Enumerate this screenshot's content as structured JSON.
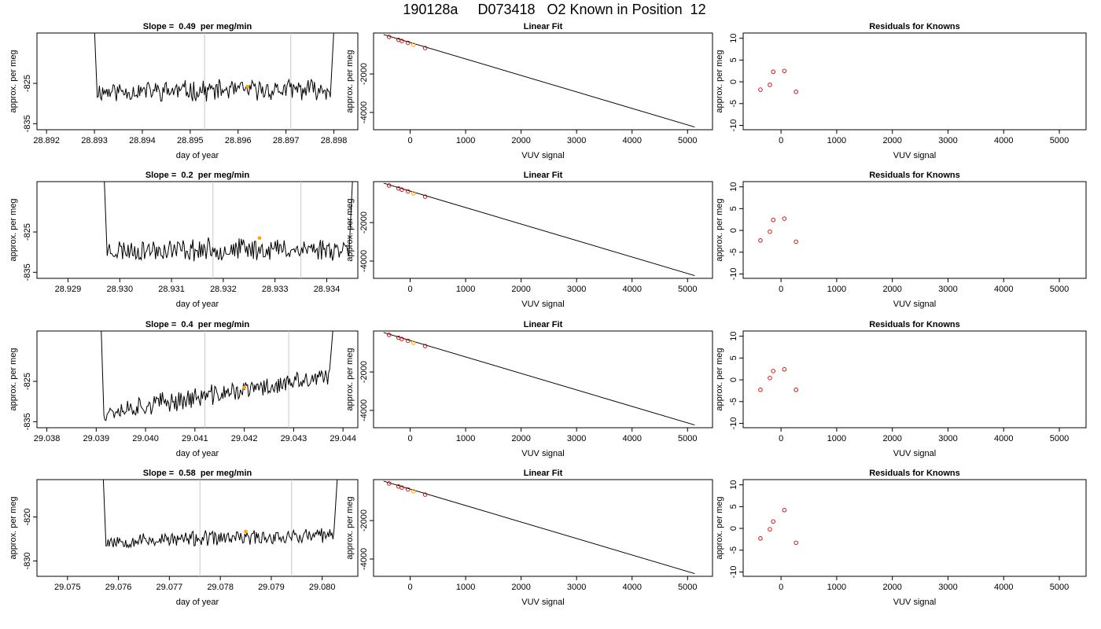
{
  "figure_title": "190128a     D073418   O2 Known in Position  12",
  "colors": {
    "trace": "#000000",
    "vline": "#c8c8c8",
    "highlight": "#ffa500",
    "residual": "#cc0000",
    "axis": "#000000"
  },
  "chart_data": [
    {
      "type": "line",
      "row": 0,
      "panel": "trace",
      "title": "Slope =  0.49  per meg/min",
      "xlabel": "day of year",
      "ylabel": "approx. per meg",
      "xlim": [
        28.8918,
        28.8985
      ],
      "ylim": [
        -836.5,
        -812.5
      ],
      "xticks": [
        28.892,
        28.893,
        28.894,
        28.895,
        28.896,
        28.897,
        28.898
      ],
      "xticklabels": [
        "28.892",
        "28.893",
        "28.894",
        "28.895",
        "28.896",
        "28.897",
        "28.898"
      ],
      "yticks": [
        -825,
        -835
      ],
      "yticklabels": [
        "-825",
        "-835"
      ],
      "vlines": [
        28.8953,
        28.8971
      ],
      "trace": {
        "x_start": 28.893,
        "x_end": 28.898,
        "base": -827,
        "drift": 0.5,
        "noise": 2.2,
        "seed": 11
      },
      "highlight": {
        "x": 28.8962,
        "y": -825.8
      }
    },
    {
      "type": "line",
      "row": 0,
      "panel": "fit",
      "title": "Linear Fit",
      "xlabel": "VUV signal",
      "ylabel": "approx. per meg",
      "xlim": [
        -660,
        5450
      ],
      "ylim": [
        -4900,
        130
      ],
      "xticks": [
        0,
        1000,
        2000,
        3000,
        4000,
        5000
      ],
      "xticklabels": [
        "0",
        "1000",
        "2000",
        "3000",
        "4000",
        "5000"
      ],
      "yticks": [
        -2000,
        -4000
      ],
      "yticklabels": [
        "-2000",
        "-4000"
      ],
      "line": [
        [
          -480,
          50
        ],
        [
          5130,
          -4760
        ]
      ],
      "points": [
        [
          -380,
          -70
        ],
        [
          -210,
          -225
        ],
        [
          -150,
          -285
        ],
        [
          -40,
          -380
        ],
        [
          270,
          -650
        ]
      ],
      "highlight": {
        "x": 60,
        "y": -480
      }
    },
    {
      "type": "scatter",
      "row": 0,
      "panel": "residual",
      "title": "Residuals for Knowns",
      "xlabel": "VUV signal",
      "ylabel": "approx. per meg",
      "xlim": [
        -680,
        5480
      ],
      "ylim": [
        -11,
        11.2
      ],
      "xticks": [
        0,
        1000,
        2000,
        3000,
        4000,
        5000
      ],
      "xticklabels": [
        "0",
        "1000",
        "2000",
        "3000",
        "4000",
        "5000"
      ],
      "yticks": [
        -10,
        -5,
        0,
        5,
        10
      ],
      "yticklabels": [
        "-10",
        "-5",
        "0",
        "5",
        "10"
      ],
      "x": [
        -370,
        -200,
        -140,
        60,
        270
      ],
      "y": [
        -1.8,
        -0.7,
        2.3,
        2.5,
        -2.3
      ]
    },
    {
      "type": "line",
      "row": 1,
      "panel": "trace",
      "title": "Slope =  0.2  per meg/min",
      "xlabel": "day of year",
      "ylabel": "approx. per meg",
      "xlim": [
        28.9284,
        28.9346
      ],
      "ylim": [
        -836.5,
        -812.5
      ],
      "xticks": [
        28.929,
        28.93,
        28.931,
        28.932,
        28.933,
        28.934
      ],
      "xticklabels": [
        "28.929",
        "28.930",
        "28.931",
        "28.932",
        "28.933",
        "28.934"
      ],
      "yticks": [
        -825,
        -835
      ],
      "yticklabels": [
        "-825",
        "-835"
      ],
      "vlines": [
        28.9318,
        28.9335
      ],
      "trace": {
        "x_start": 28.9297,
        "x_end": 28.9345,
        "base": -829.5,
        "drift": 0.35,
        "noise": 2.4,
        "seed": 23
      },
      "highlight": {
        "x": 28.9327,
        "y": -826.5
      }
    },
    {
      "type": "line",
      "row": 1,
      "panel": "fit",
      "title": "Linear Fit",
      "xlabel": "VUV signal",
      "ylabel": "approx. per meg",
      "xlim": [
        -660,
        5450
      ],
      "ylim": [
        -4900,
        130
      ],
      "xticks": [
        0,
        1000,
        2000,
        3000,
        4000,
        5000
      ],
      "xticklabels": [
        "0",
        "1000",
        "2000",
        "3000",
        "4000",
        "5000"
      ],
      "yticks": [
        -2000,
        -4000
      ],
      "yticklabels": [
        "-2000",
        "-4000"
      ],
      "line": [
        [
          -480,
          50
        ],
        [
          5130,
          -4760
        ]
      ],
      "points": [
        [
          -380,
          -70
        ],
        [
          -210,
          -225
        ],
        [
          -150,
          -285
        ],
        [
          -40,
          -380
        ],
        [
          270,
          -650
        ]
      ],
      "highlight": {
        "x": 60,
        "y": -480
      }
    },
    {
      "type": "scatter",
      "row": 1,
      "panel": "residual",
      "title": "Residuals for Knowns",
      "xlabel": "VUV signal",
      "ylabel": "approx. per meg",
      "xlim": [
        -680,
        5480
      ],
      "ylim": [
        -11,
        11.2
      ],
      "xticks": [
        0,
        1000,
        2000,
        3000,
        4000,
        5000
      ],
      "xticklabels": [
        "0",
        "1000",
        "2000",
        "3000",
        "4000",
        "5000"
      ],
      "yticks": [
        -10,
        -5,
        0,
        5,
        10
      ],
      "yticklabels": [
        "-10",
        "-5",
        "0",
        "5",
        "10"
      ],
      "x": [
        -370,
        -200,
        -140,
        60,
        270
      ],
      "y": [
        -2.3,
        -0.3,
        2.4,
        2.7,
        -2.6
      ]
    },
    {
      "type": "line",
      "row": 2,
      "panel": "trace",
      "title": "Slope =  0.4  per meg/min",
      "xlabel": "day of year",
      "ylabel": "approx. per meg",
      "xlim": [
        29.0378,
        29.0443
      ],
      "ylim": [
        -836.5,
        -812.5
      ],
      "xticks": [
        29.038,
        29.039,
        29.04,
        29.041,
        29.042,
        29.043,
        29.044
      ],
      "xticklabels": [
        "29.038",
        "29.039",
        "29.040",
        "29.041",
        "29.042",
        "29.043",
        "29.044"
      ],
      "yticks": [
        -825,
        -835
      ],
      "yticklabels": [
        "-825",
        "-835"
      ],
      "vlines": [
        29.0412,
        29.0429
      ],
      "trace": {
        "x_start": 29.0391,
        "x_end": 29.0438,
        "base": -832.5,
        "drift": 8.5,
        "noise": 2.2,
        "seed": 37
      },
      "highlight": {
        "x": 29.042,
        "y": -826.5
      }
    },
    {
      "type": "line",
      "row": 2,
      "panel": "fit",
      "title": "Linear Fit",
      "xlabel": "VUV signal",
      "ylabel": "approx. per meg",
      "xlim": [
        -660,
        5450
      ],
      "ylim": [
        -4900,
        130
      ],
      "xticks": [
        0,
        1000,
        2000,
        3000,
        4000,
        5000
      ],
      "xticklabels": [
        "0",
        "1000",
        "2000",
        "3000",
        "4000",
        "5000"
      ],
      "yticks": [
        -2000,
        -4000
      ],
      "yticklabels": [
        "-2000",
        "-4000"
      ],
      "line": [
        [
          -480,
          50
        ],
        [
          5130,
          -4760
        ]
      ],
      "points": [
        [
          -380,
          -70
        ],
        [
          -210,
          -225
        ],
        [
          -150,
          -285
        ],
        [
          -40,
          -380
        ],
        [
          270,
          -650
        ]
      ],
      "highlight": {
        "x": 60,
        "y": -480
      }
    },
    {
      "type": "scatter",
      "row": 2,
      "panel": "residual",
      "title": "Residuals for Knowns",
      "xlabel": "VUV signal",
      "ylabel": "approx. per meg",
      "xlim": [
        -680,
        5480
      ],
      "ylim": [
        -11,
        11.2
      ],
      "xticks": [
        0,
        1000,
        2000,
        3000,
        4000,
        5000
      ],
      "xticklabels": [
        "0",
        "1000",
        "2000",
        "3000",
        "4000",
        "5000"
      ],
      "yticks": [
        -10,
        -5,
        0,
        5,
        10
      ],
      "yticklabels": [
        "-10",
        "-5",
        "0",
        "5",
        "10"
      ],
      "x": [
        -370,
        -200,
        -140,
        60,
        270
      ],
      "y": [
        -2.3,
        0.4,
        2.0,
        2.4,
        -2.3
      ]
    },
    {
      "type": "line",
      "row": 3,
      "panel": "trace",
      "title": "Slope =  0.58  per meg/min",
      "xlabel": "day of year",
      "ylabel": "approx. per meg",
      "xlim": [
        29.0744,
        29.0807
      ],
      "ylim": [
        -833.5,
        -811.5
      ],
      "xticks": [
        29.075,
        29.076,
        29.077,
        29.078,
        29.079,
        29.08
      ],
      "xticklabels": [
        "29.075",
        "29.076",
        "29.077",
        "29.078",
        "29.079",
        "29.080"
      ],
      "yticks": [
        -820,
        -830
      ],
      "yticklabels": [
        "-820",
        "-830"
      ],
      "vlines": [
        29.0776,
        29.0794
      ],
      "trace": {
        "x_start": 29.0757,
        "x_end": 29.0803,
        "base": -825.5,
        "drift": 1.3,
        "noise": 1.5,
        "seed": 53
      },
      "highlight": {
        "x": 29.0785,
        "y": -823.3
      }
    },
    {
      "type": "line",
      "row": 3,
      "panel": "fit",
      "title": "Linear Fit",
      "xlabel": "VUV signal",
      "ylabel": "approx. per meg",
      "xlim": [
        -660,
        5450
      ],
      "ylim": [
        -4900,
        130
      ],
      "xticks": [
        0,
        1000,
        2000,
        3000,
        4000,
        5000
      ],
      "xticklabels": [
        "0",
        "1000",
        "2000",
        "3000",
        "4000",
        "5000"
      ],
      "yticks": [
        -2000,
        -4000
      ],
      "yticklabels": [
        "-2000",
        "-4000"
      ],
      "line": [
        [
          -480,
          50
        ],
        [
          5130,
          -4760
        ]
      ],
      "points": [
        [
          -380,
          -70
        ],
        [
          -210,
          -225
        ],
        [
          -150,
          -285
        ],
        [
          -40,
          -380
        ],
        [
          270,
          -650
        ]
      ],
      "highlight": {
        "x": 60,
        "y": -480
      }
    },
    {
      "type": "scatter",
      "row": 3,
      "panel": "residual",
      "title": "Residuals for Knowns",
      "xlabel": "VUV signal",
      "ylabel": "approx. per meg",
      "xlim": [
        -680,
        5480
      ],
      "ylim": [
        -11,
        11.2
      ],
      "xticks": [
        0,
        1000,
        2000,
        3000,
        4000,
        5000
      ],
      "xticklabels": [
        "0",
        "1000",
        "2000",
        "3000",
        "4000",
        "5000"
      ],
      "yticks": [
        -10,
        -5,
        0,
        5,
        10
      ],
      "yticklabels": [
        "-10",
        "-5",
        "0",
        "5",
        "10"
      ],
      "x": [
        -370,
        -200,
        -140,
        60,
        270
      ],
      "y": [
        -2.3,
        -0.2,
        1.6,
        4.2,
        -3.3
      ]
    }
  ]
}
